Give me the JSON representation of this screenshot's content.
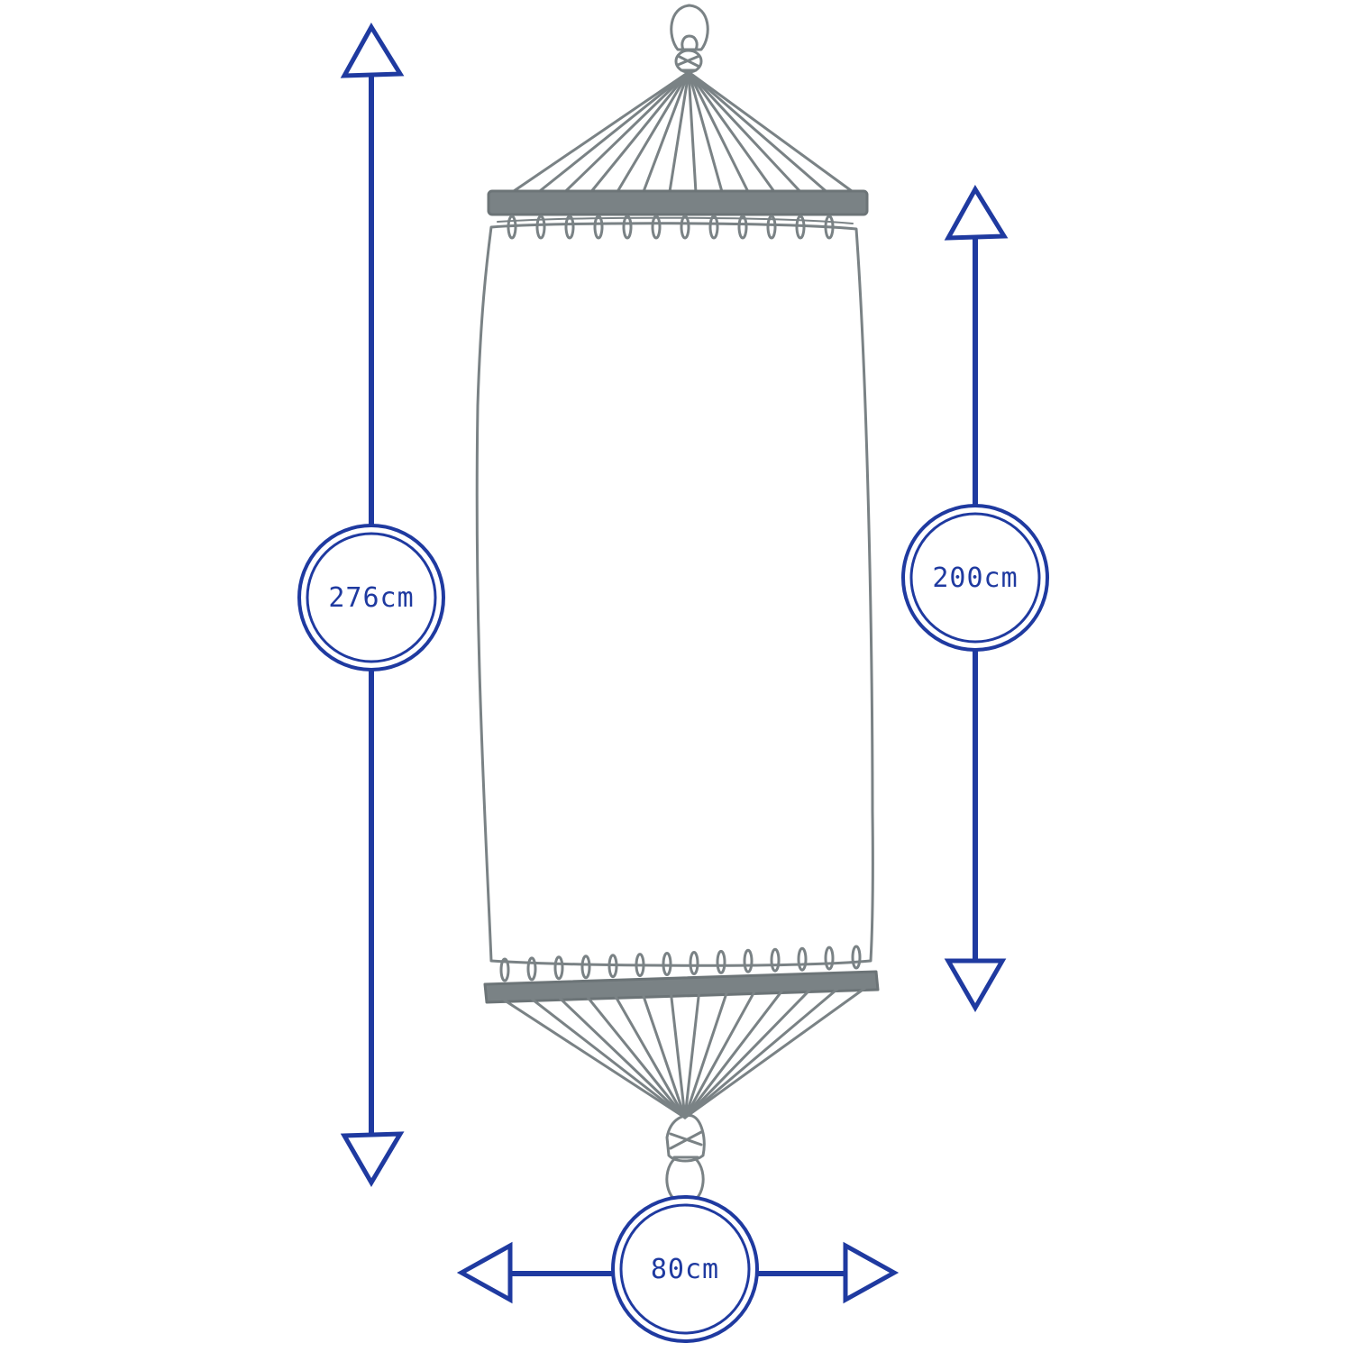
{
  "colors": {
    "dimension": "#1f3aa0",
    "hammock": "#7a8285",
    "background": "#ffffff"
  },
  "dimensions": {
    "total_length": {
      "label": "276cm",
      "value": 276,
      "unit": "cm"
    },
    "bed_length": {
      "label": "200cm",
      "value": 200,
      "unit": "cm"
    },
    "width": {
      "label": "80cm",
      "value": 80,
      "unit": "cm"
    }
  },
  "hammock": {
    "string_count": 14
  }
}
